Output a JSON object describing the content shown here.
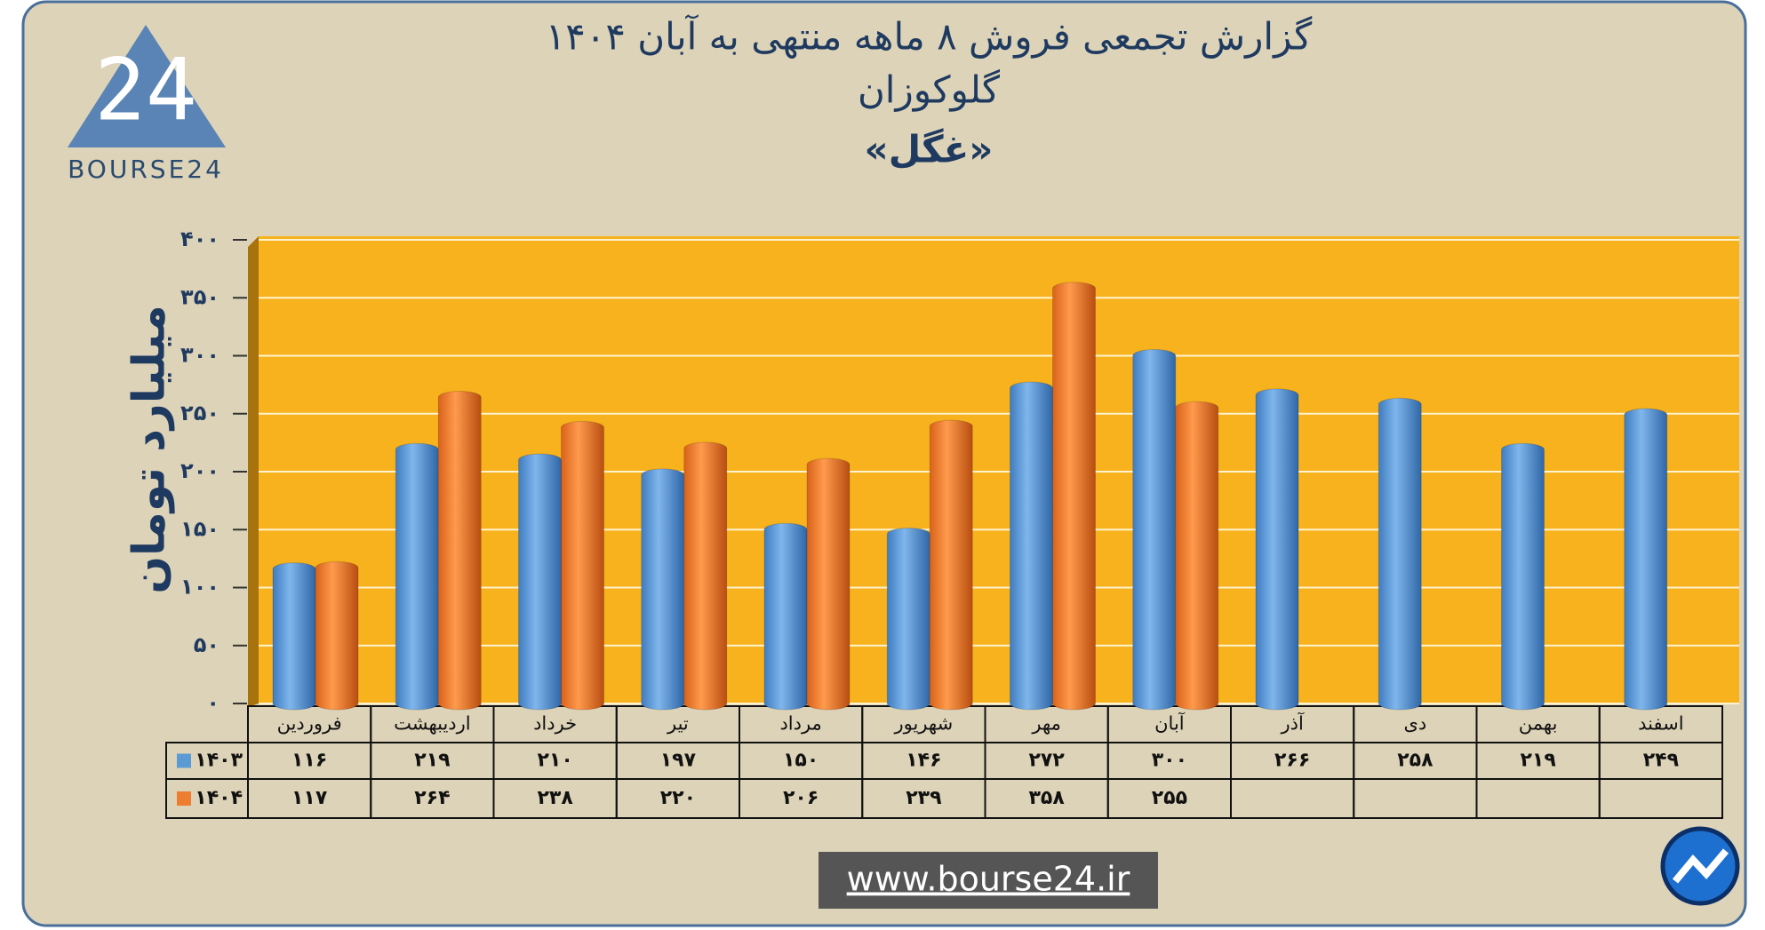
{
  "logo": {
    "mark": "24",
    "text": "BOURSE24"
  },
  "url": "www.bourse24.ir",
  "chart_data": {
    "type": "bar",
    "title": "گزارش تجمعی فروش ۸ ماهه منتهی به آبان ۱۴۰۴",
    "subtitle": [
      "گلوکوزان",
      "«غگل»"
    ],
    "y_label": "میلیارد تومان",
    "categories": [
      "فروردین",
      "اردیبهشت",
      "خرداد",
      "تیر",
      "مرداد",
      "شهریور",
      "مهر",
      "آبان",
      "آذر",
      "دی",
      "بهمن",
      "اسفند"
    ],
    "series": [
      {
        "name": "۱۴۰۳",
        "color": "#5b9bd5",
        "values": [
          116,
          219,
          210,
          197,
          150,
          146,
          272,
          300,
          266,
          258,
          219,
          249
        ],
        "value_labels": [
          "۱۱۶",
          "۲۱۹",
          "۲۱۰",
          "۱۹۷",
          "۱۵۰",
          "۱۴۶",
          "۲۷۲",
          "۳۰۰",
          "۲۶۶",
          "۲۵۸",
          "۲۱۹",
          "۲۴۹"
        ]
      },
      {
        "name": "۱۴۰۴",
        "color": "#ed7d31",
        "values": [
          117,
          264,
          238,
          220,
          206,
          239,
          358,
          255,
          null,
          null,
          null,
          null
        ],
        "value_labels": [
          "۱۱۷",
          "۲۶۴",
          "۲۳۸",
          "۲۲۰",
          "۲۰۶",
          "۲۳۹",
          "۳۵۸",
          "۲۵۵",
          null,
          null,
          null,
          null
        ]
      }
    ],
    "ylim": [
      0,
      400
    ],
    "yticks": [
      {
        "value": 0,
        "label": "۰"
      },
      {
        "value": 50,
        "label": "۵۰"
      },
      {
        "value": 100,
        "label": "۱۰۰"
      },
      {
        "value": 150,
        "label": "۱۵۰"
      },
      {
        "value": 200,
        "label": "۲۰۰"
      },
      {
        "value": 250,
        "label": "۲۵۰"
      },
      {
        "value": 300,
        "label": "۳۰۰"
      },
      {
        "value": 350,
        "label": "۳۵۰"
      },
      {
        "value": 400,
        "label": "۴۰۰"
      }
    ],
    "grid": true,
    "plot_color": "#f7b21e"
  }
}
